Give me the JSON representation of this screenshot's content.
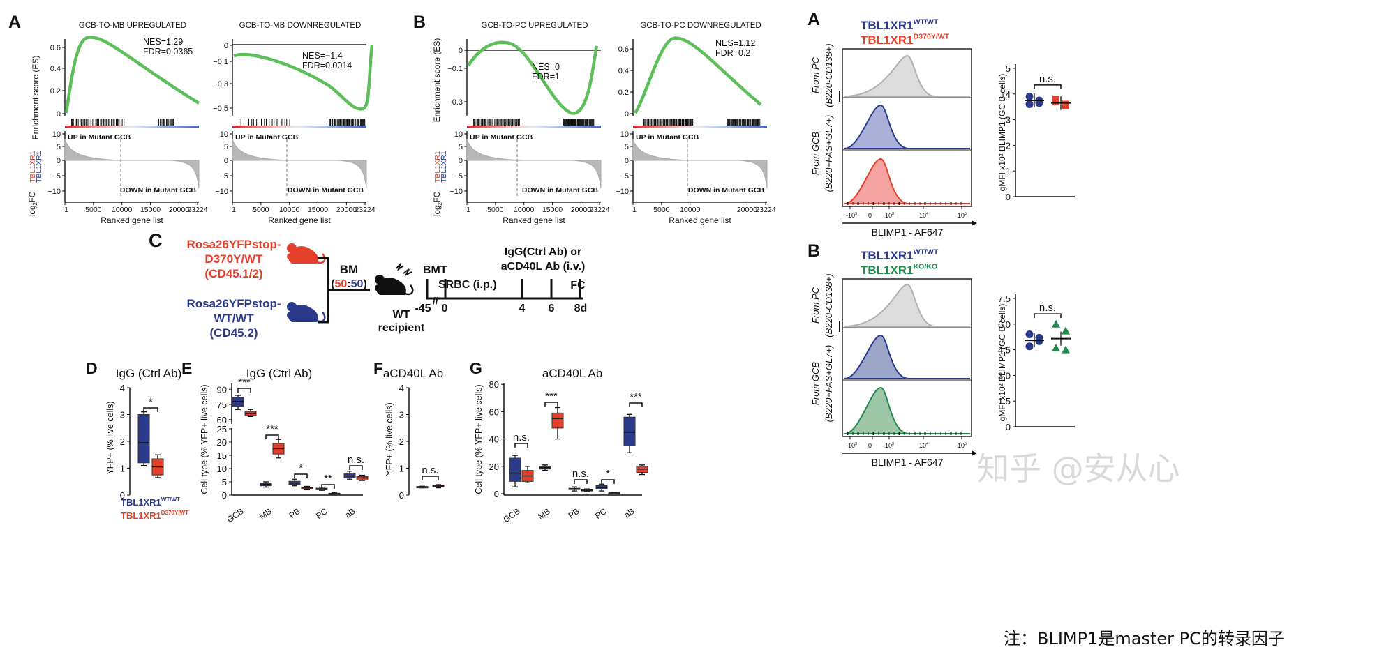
{
  "panel_letters": {
    "A_left": "A",
    "B_left": "B",
    "C": "C",
    "D": "D",
    "E": "E",
    "F": "F",
    "G": "G",
    "A_right": "A",
    "B_right": "B"
  },
  "gsea": {
    "ylabel": "Enrichment score (ES)",
    "xlabel": "Ranked gene list",
    "rank_ylabel_base": "log",
    "rank_ylabel_sub": "2",
    "rank_ylabel_fc": "FC",
    "rank_ylabel_num": "TBL1XR1",
    "rank_ylabel_den": "TBL1XR1",
    "up_label": "UP in Mutant GCB",
    "down_label": "DOWN in Mutant GCB",
    "rank_yticks": [
      "10",
      "5",
      "0",
      "−5",
      "−10"
    ],
    "xticks_full": [
      "1",
      "5000",
      "10000",
      "15000",
      "20000",
      "23224"
    ],
    "xticks_short": [
      "1",
      "5000",
      "10000",
      "20000",
      "23224"
    ],
    "plots": [
      {
        "title": "GCB-TO-MB UPREGULATED",
        "nes": "NES=1.29",
        "fdr": "FDR=0.0365",
        "yticks": [
          "0.6",
          "0.4",
          "0.2",
          "0"
        ]
      },
      {
        "title": "GCB-TO-MB DOWNREGULATED",
        "nes": "NES=−1.4",
        "fdr": "FDR=0.0014",
        "yticks": [
          "0",
          "−0.1",
          "−0.3",
          "−0.5"
        ]
      },
      {
        "title": "GCB-TO-PC UPREGULATED",
        "nes": "NES=0",
        "fdr": "FDR=1",
        "yticks": [
          "0",
          "−0.1",
          "−0.3"
        ]
      },
      {
        "title": "GCB-TO-PC DOWNREGULATED",
        "nes": "NES=1.12",
        "fdr": "FDR=0.2",
        "yticks": [
          "0.6",
          "0.4",
          "0.2",
          "0"
        ]
      }
    ]
  },
  "schematic": {
    "donor_mut": [
      "Rosa26YFPstop-",
      "D370Y/WT",
      "(CD45.1/2)"
    ],
    "donor_wt": [
      "Rosa26YFPstop-",
      "WT/WT",
      "(CD45.2)"
    ],
    "bm": "BM",
    "ratio_open": "(",
    "ratio_a": "50",
    "ratio_sep": ":",
    "ratio_b": "50",
    "ratio_close": ")",
    "recipient": [
      "WT",
      "recipient"
    ],
    "bmt": "BMT",
    "srbc": "SRBC (i.p.)",
    "treatment": [
      "IgG(Ctrl Ab) or",
      "aCD40L Ab (i.v.)"
    ],
    "fc": "FC",
    "timeline": [
      "-45",
      "0",
      "4",
      "6",
      "8d"
    ],
    "break_mark": "//"
  },
  "panelD": {
    "title": "IgG (Ctrl Ab)",
    "ylabel": "YFP+ (% live cells)",
    "yticks": [
      "4",
      "3",
      "2",
      "1",
      "0"
    ],
    "sig": "*"
  },
  "panelE": {
    "title": "IgG (Ctrl Ab)",
    "ylabel": "Cell type (% YFP+ live cells)",
    "upper_ticks": [
      "90",
      "75",
      "60"
    ],
    "lower_ticks": [
      "25",
      "20",
      "15",
      "10",
      "5",
      "0"
    ],
    "categories": [
      "GCB",
      "MB",
      "PB",
      "PC",
      "aB"
    ],
    "sig": [
      "***",
      "***",
      "*",
      "**",
      "n.s."
    ]
  },
  "panelF": {
    "title": "aCD40L Ab",
    "ylabel": "YFP+ (% live cells)",
    "yticks": [
      "4",
      "3",
      "2",
      "1",
      "0"
    ],
    "sig": "n.s."
  },
  "panelG": {
    "title": "aCD40L Ab",
    "ylabel": "Cell type (% YFP+ live cells)",
    "yticks": [
      "80",
      "60",
      "40",
      "20",
      "0"
    ],
    "categories": [
      "GCB",
      "MB",
      "PB",
      "PC",
      "aB"
    ],
    "sig": [
      "n.s.",
      "***",
      "n.s.",
      "*",
      "***"
    ]
  },
  "legend_DG": {
    "wt": "TBL1XR1",
    "wt_sup": "WT/WT",
    "mut": "TBL1XR1",
    "mut_sup": "D370Y/WT"
  },
  "flowA": {
    "legend_wt": "TBL1XR1",
    "legend_wt_sup": "WT/WT",
    "legend_mut": "TBL1XR1",
    "legend_mut_sup": "D370Y/WT",
    "pc_label": [
      "From PC",
      "(B220-CD138+)"
    ],
    "gcb_label": [
      "From GCB",
      "(B220+FAS+GL7+)"
    ],
    "xlabel": "BLIMP1 - AF647",
    "xticks": [
      "-10",
      "0",
      "10",
      "10",
      "10"
    ],
    "xtick_sups": [
      "3",
      "",
      "3",
      "4",
      "5"
    ],
    "dot_ylabel": "gMFI x10² BLIMP1 (GC B-cells)",
    "dot_yticks": [
      "5",
      "4",
      "3",
      "2",
      "1",
      "0"
    ],
    "sig": "n.s."
  },
  "flowB": {
    "legend_wt": "TBL1XR1",
    "legend_wt_sup": "WT/WT",
    "legend_ko": "TBL1XR1",
    "legend_ko_sup": "KO/KO",
    "pc_label": [
      "From PC",
      "(B220-CD138+)"
    ],
    "gcb_label": [
      "From GCB",
      "(B220+FAS+GL7+)"
    ],
    "xlabel": "BLIMP1 - AF647",
    "xticks": [
      "-10",
      "0",
      "10",
      "10",
      "10"
    ],
    "xtick_sups": [
      "3",
      "",
      "3",
      "4",
      "5"
    ],
    "dot_ylabel": "gMFI x10² BLIMP1 (GC B-cells)",
    "dot_yticks": [
      "7.5",
      "6.0",
      "4.5",
      "3.0",
      "1.5",
      "0"
    ],
    "sig": "n.s."
  },
  "watermark": "知乎 @安从心",
  "note": "注：BLIMP1是master PC的转录因子",
  "colors": {
    "gsea_line": "#5cbf5a",
    "wt": "#2b3b8c",
    "mut": "#e2402a",
    "ko": "#1f8a4c",
    "grey": "#b8b8b8"
  },
  "chart_data": [
    {
      "type": "box",
      "panel": "D",
      "title": "IgG (Ctrl Ab)",
      "ylabel": "YFP+ (% live cells)",
      "ylim": [
        0,
        4
      ],
      "series": [
        {
          "name": "TBL1XR1 WT/WT",
          "min": 1.1,
          "q1": 1.2,
          "median": 1.95,
          "q3": 3.0,
          "max": 3.1
        },
        {
          "name": "TBL1XR1 D370Y/WT",
          "min": 0.65,
          "q1": 0.75,
          "median": 1.05,
          "q3": 1.35,
          "max": 1.5
        }
      ]
    },
    {
      "type": "box",
      "panel": "E",
      "title": "IgG (Ctrl Ab)",
      "ylabel": "Cell type (% YFP+ live cells)",
      "categories": [
        "GCB",
        "MB",
        "PB",
        "PC",
        "aB"
      ],
      "series": [
        {
          "name": "TBL1XR1 WT/WT",
          "boxes": [
            [
              70,
              73,
              78,
              82,
              84
            ],
            [
              3,
              3.5,
              4,
              4.5,
              5
            ],
            [
              3.5,
              4,
              4.5,
              5.2,
              6
            ],
            [
              1.8,
              2,
              2.3,
              2.6,
              3
            ],
            [
              6,
              6.5,
              7.2,
              8,
              9
            ]
          ]
        },
        {
          "name": "TBL1XR1 D370Y/WT",
          "boxes": [
            [
              63,
              64,
              66,
              68,
              70
            ],
            [
              14,
              15.5,
              17.5,
              19.5,
              21
            ],
            [
              2,
              2.3,
              2.7,
              3,
              3.3
            ],
            [
              0.2,
              0.3,
              0.5,
              0.7,
              1
            ],
            [
              5.5,
              6,
              6.5,
              7,
              7.5
            ]
          ]
        }
      ]
    },
    {
      "type": "box",
      "panel": "F",
      "title": "aCD40L Ab",
      "ylabel": "YFP+ (% live cells)",
      "ylim": [
        0,
        4
      ],
      "series": [
        {
          "name": "TBL1XR1 WT/WT",
          "min": 0.27,
          "q1": 0.28,
          "median": 0.3,
          "q3": 0.32,
          "max": 0.33
        },
        {
          "name": "TBL1XR1 D370Y/WT",
          "min": 0.27,
          "q1": 0.31,
          "median": 0.34,
          "q3": 0.37,
          "max": 0.39
        }
      ]
    },
    {
      "type": "box",
      "panel": "G",
      "title": "aCD40L Ab",
      "ylabel": "Cell type (% YFP+ live cells)",
      "ylim": [
        0,
        80
      ],
      "categories": [
        "GCB",
        "MB",
        "PB",
        "PC",
        "aB"
      ],
      "series": [
        {
          "name": "TBL1XR1 WT/WT",
          "boxes": [
            [
              5,
              9,
              15,
              26,
              28
            ],
            [
              17,
              18,
              19,
              20,
              21
            ],
            [
              2,
              3,
              3.5,
              4,
              5
            ],
            [
              2,
              3.5,
              4.5,
              6,
              7
            ],
            [
              30,
              35,
              45,
              56,
              58
            ]
          ]
        },
        {
          "name": "TBL1XR1 D370Y/WT",
          "boxes": [
            [
              8,
              9,
              13,
              17,
              20
            ],
            [
              40,
              48,
              55,
              59,
              63
            ],
            [
              1.5,
              2,
              2.5,
              3,
              3.5
            ],
            [
              0.2,
              0.3,
              0.5,
              0.7,
              0.9
            ],
            [
              14,
              15.5,
              18,
              20,
              21
            ]
          ]
        }
      ]
    },
    {
      "type": "scatter",
      "panel": "A (right)",
      "ylabel": "gMFI x10² BLIMP1 (GC B-cells)",
      "ylim": [
        0,
        5
      ],
      "series": [
        {
          "name": "TBL1XR1 WT/WT",
          "values": [
            3.9,
            3.75,
            3.6,
            3.65
          ],
          "mean": 3.75
        },
        {
          "name": "TBL1XR1 D370Y/WT",
          "values": [
            3.8,
            3.6,
            3.7,
            3.55
          ],
          "mean": 3.65
        }
      ]
    },
    {
      "type": "scatter",
      "panel": "B (right)",
      "ylabel": "gMFI x10² BLIMP1 (GC B-cells)",
      "ylim": [
        0,
        7.5
      ],
      "series": [
        {
          "name": "TBL1XR1 WT/WT",
          "values": [
            5.4,
            5.0,
            4.7,
            5.2
          ],
          "mean": 5.05
        },
        {
          "name": "TBL1XR1 KO/KO",
          "values": [
            6.0,
            5.6,
            4.6,
            4.5
          ],
          "mean": 5.15
        }
      ]
    }
  ]
}
